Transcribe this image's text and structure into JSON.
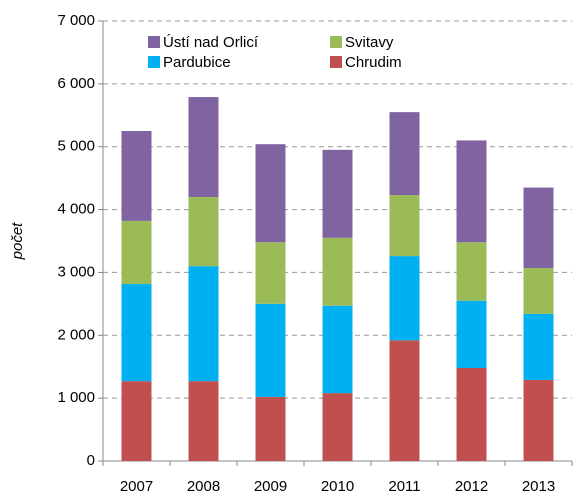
{
  "chart_data": {
    "type": "stacked_bar",
    "y_label": "počet",
    "categories": [
      "2007",
      "2008",
      "2009",
      "2010",
      "2011",
      "2012",
      "2013"
    ],
    "series": [
      {
        "name": "Chrudim",
        "color": "#c0504d",
        "values": [
          1270,
          1270,
          1020,
          1080,
          1920,
          1480,
          1290
        ]
      },
      {
        "name": "Pardubice",
        "color": "#00b0f0",
        "values": [
          1545,
          1830,
          1480,
          1390,
          1340,
          1070,
          1050
        ]
      },
      {
        "name": "Svitavy",
        "color": "#9bbb59",
        "values": [
          1005,
          1100,
          980,
          1080,
          970,
          930,
          730
        ]
      },
      {
        "name": "Ústí nad Orlicí",
        "color": "#8064a2",
        "values": [
          1430,
          1590,
          1560,
          1400,
          1320,
          1620,
          1280
        ]
      }
    ],
    "ylim": [
      0,
      7000
    ],
    "yticks": [
      0,
      {
        "value": 1000,
        "label": "1 000"
      },
      {
        "value": 2000,
        "label": "2 000"
      },
      {
        "value": 3000,
        "label": "3 000"
      },
      {
        "value": 4000,
        "label": "4 000"
      },
      {
        "value": 5000,
        "label": "5 000"
      },
      {
        "value": 6000,
        "label": "6 000"
      },
      {
        "value": 7000,
        "label": "7 000"
      }
    ],
    "grid": true
  }
}
